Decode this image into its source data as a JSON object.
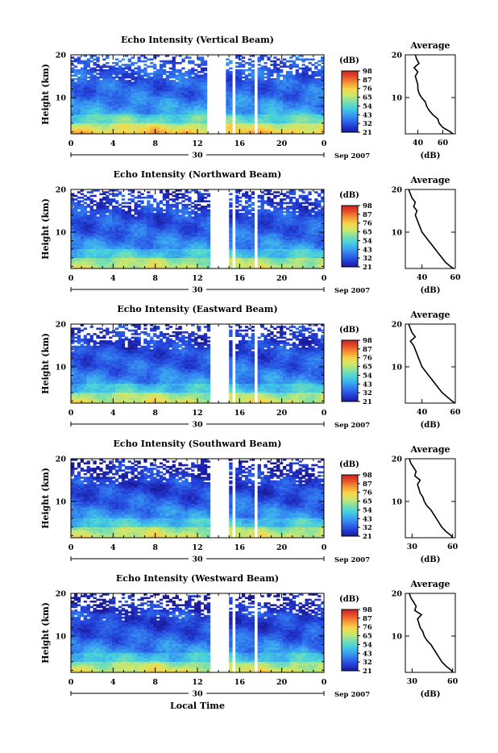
{
  "colors": {
    "scale": [
      "#1a1a9a",
      "#2340d8",
      "#2f72ec",
      "#3aa6f0",
      "#48d2dc",
      "#7fe0a8",
      "#cbe86e",
      "#f7d64a",
      "#f59a35",
      "#e8502a",
      "#cc2222"
    ],
    "gap": "#ffffff",
    "line": "#000000"
  },
  "xlabel_bottom": "Local Time",
  "date_marker": "30",
  "date_tail": "Sep 2007",
  "cbar_unit": "(dB)",
  "avg_title": "Average",
  "avg_xlabel": "(dB)",
  "ylabel": "Height (km)",
  "chart_data": [
    {
      "type": "heatmap",
      "title": "Echo Intensity (Vertical Beam)",
      "xlabel": "Local Time",
      "ylabel": "Height (km)",
      "x_ticks": [
        "0",
        "4",
        "8",
        "12",
        "16",
        "20",
        "0"
      ],
      "y_ticks": [
        "10",
        "20"
      ],
      "xlim": [
        0,
        24
      ],
      "ylim": [
        1.5,
        20
      ],
      "colorbar_ticks": [
        "21",
        "32",
        "43",
        "54",
        "65",
        "76",
        "87",
        "98"
      ],
      "colorbar_unit": "(dB)",
      "data_gaps_hours": [
        [
          12.8,
          14.7
        ],
        [
          15.2,
          15.6
        ],
        [
          17.3,
          17.6
        ]
      ],
      "profile": {
        "title": "Average",
        "xlabel": "(dB)",
        "x_ticks": [
          "40",
          "60"
        ],
        "xlim": [
          30,
          70
        ],
        "heights_km": [
          1.5,
          2,
          3,
          4,
          5,
          6,
          7,
          8,
          9,
          10,
          11,
          12,
          13,
          14,
          15,
          16,
          17,
          18,
          19,
          20
        ],
        "values_db": [
          68,
          66,
          60,
          57,
          56,
          52,
          49,
          47,
          46,
          43,
          41,
          40,
          40,
          39,
          38,
          40,
          37,
          41,
          39,
          38
        ]
      }
    },
    {
      "type": "heatmap",
      "title": "Echo Intensity (Northward Beam)",
      "xlabel": "Local Time",
      "ylabel": "Height (km)",
      "x_ticks": [
        "0",
        "4",
        "8",
        "12",
        "16",
        "20",
        "0"
      ],
      "y_ticks": [
        "10",
        "20"
      ],
      "xlim": [
        0,
        24
      ],
      "ylim": [
        1.5,
        20
      ],
      "colorbar_ticks": [
        "21",
        "32",
        "43",
        "54",
        "65",
        "76",
        "87",
        "98"
      ],
      "colorbar_unit": "(dB)",
      "data_gaps_hours": [
        [
          13.2,
          14.9
        ],
        [
          15.4,
          15.7
        ],
        [
          17.3,
          17.6
        ]
      ],
      "profile": {
        "title": "Average",
        "xlabel": "(dB)",
        "x_ticks": [
          "40",
          "60"
        ],
        "xlim": [
          30,
          60
        ],
        "heights_km": [
          1.5,
          2,
          3,
          4,
          5,
          6,
          7,
          8,
          9,
          10,
          11,
          12,
          13,
          14,
          15,
          16,
          17,
          18,
          19,
          20
        ],
        "values_db": [
          59,
          57,
          54,
          52,
          50,
          48,
          46,
          44,
          42,
          40,
          39,
          38,
          37,
          36,
          37,
          35,
          36,
          34,
          33,
          32
        ]
      }
    },
    {
      "type": "heatmap",
      "title": "Echo Intensity (Eastward Beam)",
      "xlabel": "Local Time",
      "ylabel": "Height (km)",
      "x_ticks": [
        "0",
        "4",
        "8",
        "12",
        "16",
        "20",
        "0"
      ],
      "y_ticks": [
        "10",
        "20"
      ],
      "xlim": [
        0,
        24
      ],
      "ylim": [
        1.5,
        20
      ],
      "colorbar_ticks": [
        "21",
        "32",
        "43",
        "54",
        "65",
        "76",
        "87",
        "98"
      ],
      "colorbar_unit": "(dB)",
      "data_gaps_hours": [
        [
          13.2,
          14.9
        ],
        [
          15.4,
          15.7
        ],
        [
          17.3,
          17.6
        ]
      ],
      "profile": {
        "title": "Average",
        "xlabel": "(dB)",
        "x_ticks": [
          "40",
          "60"
        ],
        "xlim": [
          30,
          60
        ],
        "heights_km": [
          1.5,
          2,
          3,
          4,
          5,
          6,
          7,
          8,
          9,
          10,
          11,
          12,
          13,
          14,
          15,
          16,
          17,
          18,
          19,
          20
        ],
        "values_db": [
          60,
          58,
          55,
          52,
          50,
          48,
          46,
          44,
          42,
          40,
          39,
          38,
          37,
          36,
          35,
          33,
          36,
          34,
          33,
          32
        ]
      }
    },
    {
      "type": "heatmap",
      "title": "Echo Intensity (Southward Beam)",
      "xlabel": "Local Time",
      "ylabel": "Height (km)",
      "x_ticks": [
        "0",
        "4",
        "8",
        "12",
        "16",
        "20",
        "0"
      ],
      "y_ticks": [
        "10",
        "20"
      ],
      "xlim": [
        0,
        24
      ],
      "ylim": [
        1.5,
        20
      ],
      "colorbar_ticks": [
        "21",
        "32",
        "43",
        "54",
        "65",
        "76",
        "87",
        "98"
      ],
      "colorbar_unit": "(dB)",
      "data_gaps_hours": [
        [
          13.2,
          14.9
        ],
        [
          15.4,
          15.7
        ],
        [
          17.3,
          17.6
        ]
      ],
      "profile": {
        "title": "Average",
        "xlabel": "(dB)",
        "x_ticks": [
          "30",
          "60"
        ],
        "xlim": [
          25,
          62
        ],
        "heights_km": [
          1.5,
          2,
          3,
          4,
          5,
          6,
          7,
          8,
          9,
          10,
          11,
          12,
          13,
          14,
          15,
          16,
          17,
          18,
          19,
          20
        ],
        "values_db": [
          60,
          59,
          55,
          52,
          50,
          48,
          46,
          44,
          41,
          39,
          38,
          36,
          35,
          34,
          36,
          32,
          33,
          31,
          29,
          28
        ]
      }
    },
    {
      "type": "heatmap",
      "title": "Echo Intensity (Westward Beam)",
      "xlabel": "Local Time",
      "ylabel": "Height (km)",
      "x_ticks": [
        "0",
        "4",
        "8",
        "12",
        "16",
        "20",
        "0"
      ],
      "y_ticks": [
        "10",
        "20"
      ],
      "xlim": [
        0,
        24
      ],
      "ylim": [
        1.5,
        20
      ],
      "colorbar_ticks": [
        "21",
        "32",
        "43",
        "54",
        "65",
        "76",
        "87",
        "98"
      ],
      "colorbar_unit": "(dB)",
      "data_gaps_hours": [
        [
          13.2,
          14.9
        ],
        [
          15.4,
          15.7
        ],
        [
          17.3,
          17.6
        ]
      ],
      "profile": {
        "title": "Average",
        "xlabel": "(dB)",
        "x_ticks": [
          "30",
          "60"
        ],
        "xlim": [
          25,
          62
        ],
        "heights_km": [
          1.5,
          2,
          3,
          4,
          5,
          6,
          7,
          8,
          9,
          10,
          11,
          12,
          13,
          14,
          15,
          16,
          17,
          18,
          19,
          20
        ],
        "values_db": [
          60,
          59,
          55,
          52,
          50,
          48,
          46,
          44,
          41,
          39,
          38,
          36,
          35,
          34,
          37,
          32,
          33,
          31,
          29,
          28
        ]
      }
    }
  ]
}
